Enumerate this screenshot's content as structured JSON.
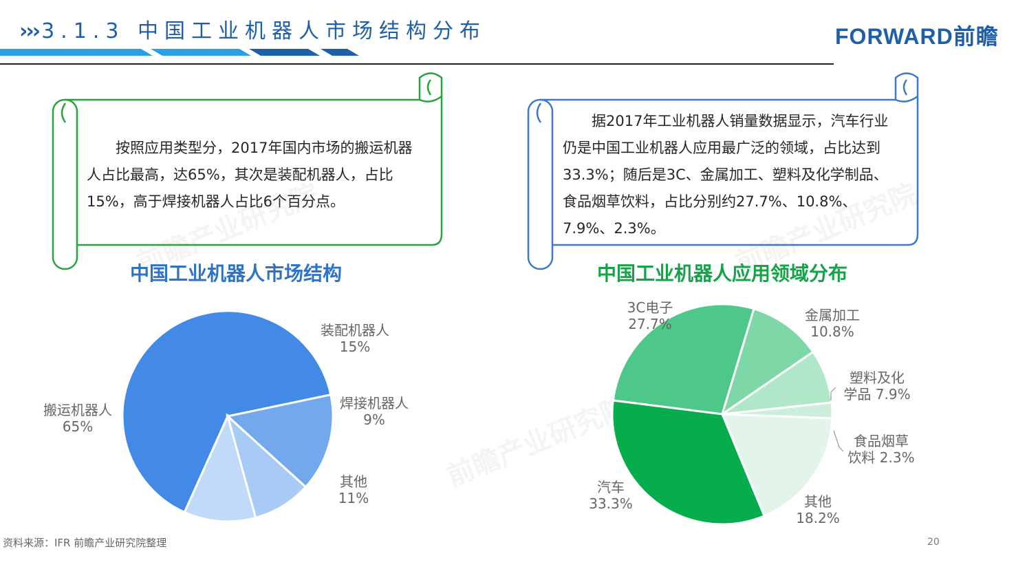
{
  "header": {
    "arrows": "›››",
    "title": "3.1.3 中国工业机器人市场结构分布",
    "logo": "FORWARD前瞻"
  },
  "left_card": {
    "text": "按照应用类型分，2017年国内市场的搬运机器人占比最高，达65%，其次是装配机器人，占比15%，高于焊接机器人占比6个百分点。"
  },
  "right_card": {
    "text": "据2017年工业机器人销量数据显示，汽车行业仍是中国工业机器人应用最广泛的领域，占比达到33.3%；随后是3C、金属加工、塑料及化学制品、食品烟草饮料，占比分别约27.7%、10.8%、7.9%、2.3%。"
  },
  "footer": {
    "source": "资料来源：IFR 前瞻产业研究院整理",
    "page": "20"
  },
  "watermark": "前瞻产业研究院",
  "colors": {
    "brand_blue": "#1f5fa8",
    "left_title": "#2e73c8",
    "right_title": "#15a348",
    "left_frame": "#27a43c",
    "right_frame": "#3c78cc"
  },
  "chart_data": [
    {
      "type": "pie",
      "title": "中国工业机器人市场结构",
      "slices": [
        {
          "label": "搬运机器人",
          "value": 65,
          "display": "65%",
          "color": "#4389e6"
        },
        {
          "label": "装配机器人",
          "value": 15,
          "display": "15%",
          "color": "#74a8ec"
        },
        {
          "label": "焊接机器人",
          "value": 9,
          "display": "9%",
          "color": "#a8cbf6"
        },
        {
          "label": "其他",
          "value": 11,
          "display": "11%",
          "color": "#c1daf9"
        }
      ]
    },
    {
      "type": "pie",
      "title": "中国工业机器人应用领域分布",
      "slices": [
        {
          "label": "3C电子",
          "value": 27.7,
          "display": "27.7%",
          "color": "#4ec889"
        },
        {
          "label": "金属加工",
          "value": 10.8,
          "display": "10.8%",
          "color": "#7dd7a7"
        },
        {
          "label": "塑料及化学品",
          "value": 7.9,
          "display": "7.9%",
          "color": "#b0e7c9"
        },
        {
          "label": "食品烟草饮料",
          "value": 2.3,
          "display": "2.3%",
          "color": "#cdeedb"
        },
        {
          "label": "其他",
          "value": 18.2,
          "display": "18.2%",
          "color": "#e3f5ea"
        },
        {
          "label": "汽车",
          "value": 33.3,
          "display": "33.3%",
          "color": "#06ad4c"
        }
      ]
    }
  ]
}
